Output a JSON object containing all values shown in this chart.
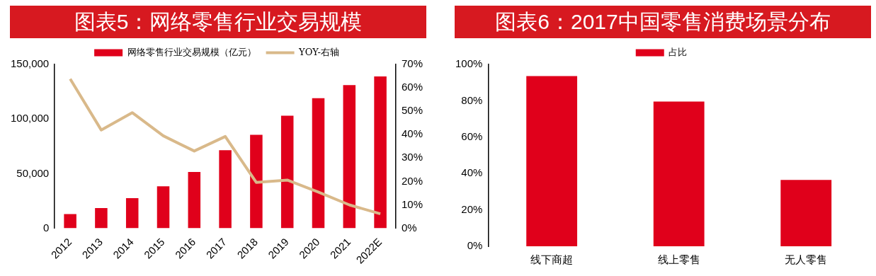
{
  "chart_data": [
    {
      "type": "bar",
      "title": "图表5：网络零售行业交易规模",
      "categories": [
        "2012",
        "2013",
        "2014",
        "2015",
        "2016",
        "2017",
        "2018",
        "2019",
        "2020",
        "2021",
        "2022E"
      ],
      "series": [
        {
          "name": "网络零售行业交易规模（亿元）",
          "color": "#e0001b",
          "values": [
            13000,
            18500,
            27600,
            38500,
            51500,
            71500,
            85600,
            103000,
            119000,
            131000,
            139000
          ]
        },
        {
          "type": "line",
          "name": "YOY-右轴",
          "color": "#d9b98a",
          "axis": "y2",
          "values": [
            63.8,
            42,
            49.4,
            39.5,
            33,
            39.2,
            19.6,
            20.6,
            15.5,
            10,
            6.2
          ]
        }
      ],
      "ylim": [
        0,
        150000
      ],
      "yticks": [
        0,
        {
          "value": 50000,
          "label": "50,000"
        },
        {
          "value": 100000,
          "label": "100,000"
        },
        {
          "value": 150000,
          "label": "150,000"
        }
      ],
      "y2lim": [
        0,
        70
      ],
      "y2ticks": [
        {
          "value": 0,
          "label": "0%"
        },
        {
          "value": 10,
          "label": "10%"
        },
        {
          "value": 20,
          "label": "20%"
        },
        {
          "value": 30,
          "label": "30%"
        },
        {
          "value": 40,
          "label": "40%"
        },
        {
          "value": 50,
          "label": "50%"
        },
        {
          "value": 60,
          "label": "60%"
        },
        {
          "value": 70,
          "label": "70%"
        }
      ],
      "legend": "top",
      "marker": "none"
    },
    {
      "type": "bar",
      "title": "图表6：2017中国零售消费场景分布",
      "categories": [
        "线下商超",
        "线上零售",
        "无人零售"
      ],
      "series": [
        {
          "name": "占比",
          "color": "#e0001b",
          "values": [
            93.6,
            79.6,
            36.5
          ]
        }
      ],
      "ylim": [
        0,
        100
      ],
      "yticks": [
        {
          "value": 0,
          "label": "0%"
        },
        {
          "value": 20,
          "label": "20%"
        },
        {
          "value": 40,
          "label": "40%"
        },
        {
          "value": 60,
          "label": "60%"
        },
        {
          "value": 80,
          "label": "80%"
        },
        {
          "value": 100,
          "label": "100%"
        }
      ],
      "legend": "top"
    }
  ]
}
